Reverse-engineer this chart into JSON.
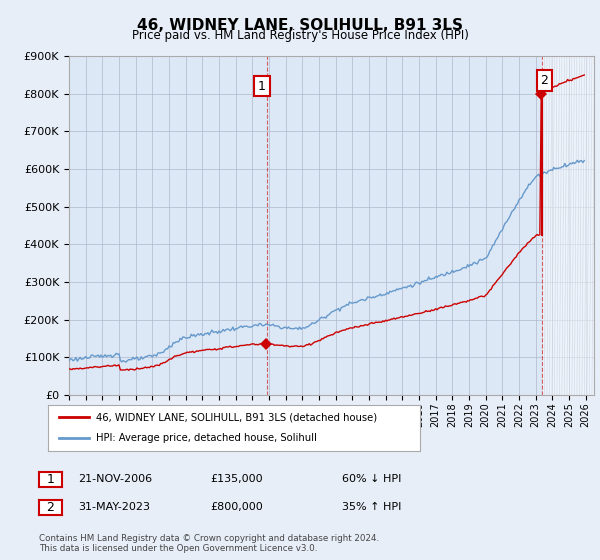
{
  "title": "46, WIDNEY LANE, SOLIHULL, B91 3LS",
  "subtitle": "Price paid vs. HM Land Registry's House Price Index (HPI)",
  "red_label": "46, WIDNEY LANE, SOLIHULL, B91 3LS (detached house)",
  "blue_label": "HPI: Average price, detached house, Solihull",
  "sale1_date": "21-NOV-2006",
  "sale1_price": 135000,
  "sale1_note": "60% ↓ HPI",
  "sale2_date": "31-MAY-2023",
  "sale2_price": 800000,
  "sale2_note": "35% ↑ HPI",
  "footer": "Contains HM Land Registry data © Crown copyright and database right 2024.\nThis data is licensed under the Open Government Licence v3.0.",
  "ylim": [
    0,
    900000
  ],
  "yticks": [
    0,
    100000,
    200000,
    300000,
    400000,
    500000,
    600000,
    700000,
    800000,
    900000
  ],
  "xlim_start": 1995.0,
  "xlim_end": 2026.5,
  "red_color": "#cc0000",
  "blue_color": "#6699cc",
  "bg_color": "#e8eef8",
  "plot_bg": "#dce8f5",
  "grid_color": "#b0b8cc",
  "annotation_box_color": "#cc0000",
  "hatch_color": "#b0b8cc"
}
